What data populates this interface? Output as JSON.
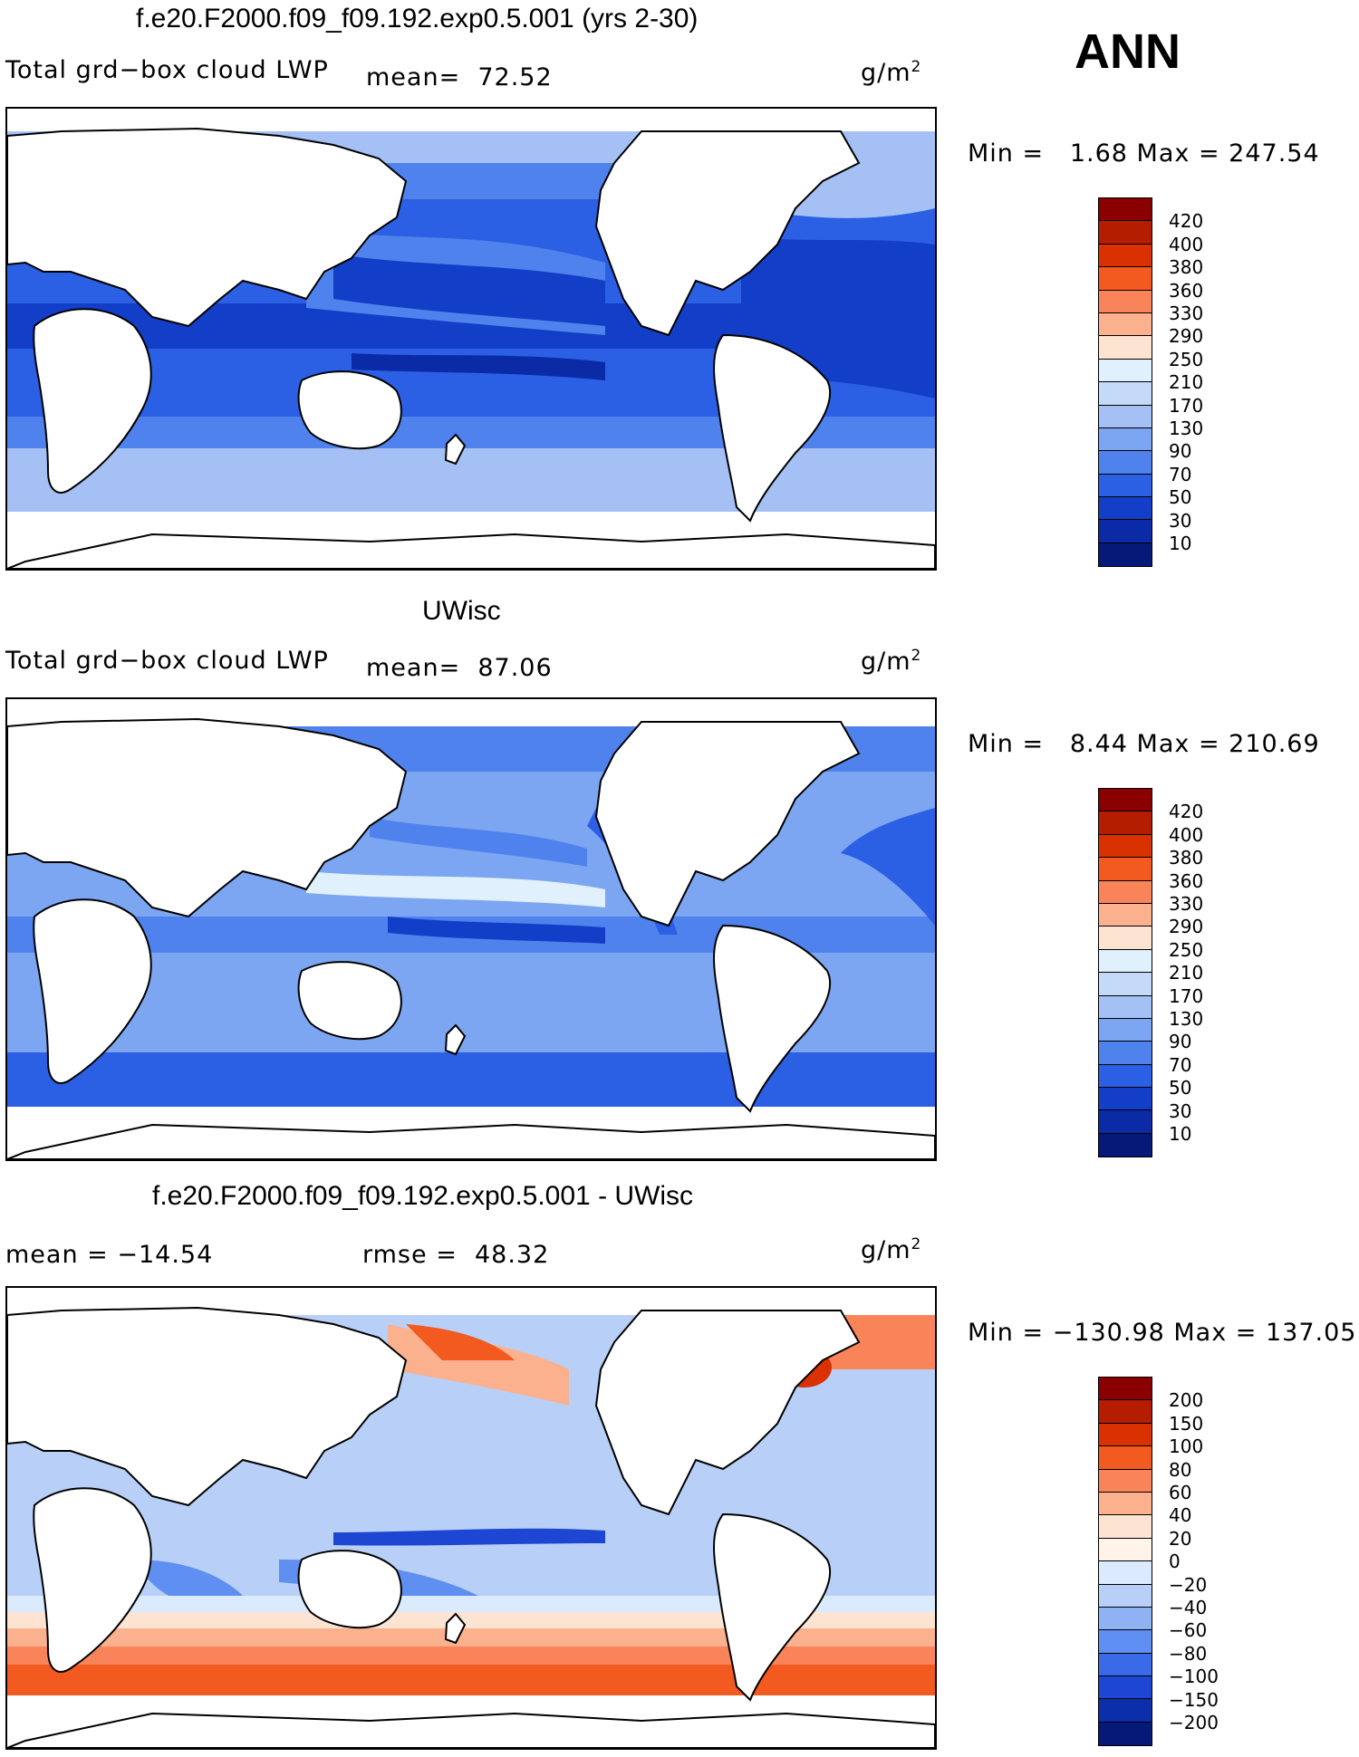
{
  "badge": "ANN",
  "panels": [
    {
      "title": "f.e20.F2000.f09_f09.192.exp0.5.001 (yrs 2-30)",
      "variable": "Total grd−box cloud LWP",
      "stat1": "mean=  72.52",
      "stat2": "",
      "units_base": "g/m",
      "units_exp": "2",
      "minmax": "Min =   1.68 Max = 247.54",
      "colorbar": {
        "labels": [
          "420",
          "400",
          "380",
          "360",
          "330",
          "290",
          "250",
          "210",
          "170",
          "130",
          "90",
          "70",
          "50",
          "30",
          "10"
        ],
        "colors": [
          "#8a0000",
          "#b51d00",
          "#d93200",
          "#f25a1f",
          "#f9845a",
          "#fbb08e",
          "#fde4d2",
          "#e0f0fc",
          "#c4daf8",
          "#a4c0f4",
          "#7ca6f2",
          "#4f82ec",
          "#2b5fe4",
          "#133fc8",
          "#0a2aa6",
          "#051a78"
        ]
      }
    },
    {
      "title": "UWisc",
      "variable": "Total grd−box cloud LWP",
      "stat1": "mean=  87.06",
      "stat2": "",
      "units_base": "g/m",
      "units_exp": "2",
      "minmax": "Min =   8.44 Max = 210.69",
      "colorbar": {
        "labels": [
          "420",
          "400",
          "380",
          "360",
          "330",
          "290",
          "250",
          "210",
          "170",
          "130",
          "90",
          "70",
          "50",
          "30",
          "10"
        ],
        "colors": [
          "#8a0000",
          "#b51d00",
          "#d93200",
          "#f25a1f",
          "#f9845a",
          "#fbb08e",
          "#fde4d2",
          "#e0f0fc",
          "#c4daf8",
          "#a4c0f4",
          "#7ca6f2",
          "#4f82ec",
          "#2b5fe4",
          "#133fc8",
          "#0a2aa6",
          "#051a78"
        ]
      }
    },
    {
      "title": "f.e20.F2000.f09_f09.192.exp0.5.001 - UWisc",
      "variable": "",
      "stat1": "mean = −14.54",
      "stat2": "rmse =  48.32",
      "units_base": "g/m",
      "units_exp": "2",
      "minmax": "Min = −130.98 Max = 137.05",
      "colorbar": {
        "labels": [
          "200",
          "150",
          "100",
          "80",
          "60",
          "40",
          "20",
          "0",
          "−20",
          "−40",
          "−60",
          "−80",
          "−100",
          "−150",
          "−200"
        ],
        "colors": [
          "#8a0000",
          "#b51d00",
          "#d93200",
          "#f25a1f",
          "#f9845a",
          "#fbb08e",
          "#fde4d2",
          "#fff3ea",
          "#dbeafc",
          "#b8d0f8",
          "#8fb2f4",
          "#5f8ff0",
          "#3a6ae8",
          "#1d46d2",
          "#0c2eaa",
          "#051a78"
        ]
      }
    }
  ]
}
